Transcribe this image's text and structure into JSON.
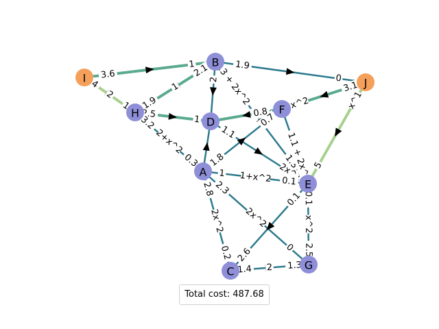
{
  "colors": {
    "node_blue": "#8e8fd8",
    "node_orange": "#f5a05a",
    "edge_teal": "#2c7a8c",
    "edge_green": "#5aaa90",
    "edge_light": "#a8d08f"
  },
  "nodes": [
    {
      "id": "B",
      "color": "node_blue"
    },
    {
      "id": "I",
      "color": "node_orange"
    },
    {
      "id": "J",
      "color": "node_orange"
    },
    {
      "id": "H",
      "color": "node_blue"
    },
    {
      "id": "F",
      "color": "node_blue"
    },
    {
      "id": "D",
      "color": "node_blue"
    },
    {
      "id": "A",
      "color": "node_blue"
    },
    {
      "id": "E",
      "color": "node_blue"
    },
    {
      "id": "C",
      "color": "node_blue"
    },
    {
      "id": "G",
      "color": "node_blue"
    }
  ],
  "edges": [
    {
      "from": "I",
      "to": "B",
      "labels": [
        "3.6",
        "1"
      ],
      "color": "edge_green"
    },
    {
      "from": "B",
      "to": "J",
      "labels": [
        "1.9",
        "0"
      ],
      "color": "edge_teal"
    },
    {
      "from": "B",
      "to": "H",
      "labels": [
        "2.1",
        "1",
        "1.9"
      ],
      "color": "edge_green"
    },
    {
      "from": "B",
      "to": "D",
      "labels": [
        "2"
      ],
      "color": "edge_teal"
    },
    {
      "from": "B",
      "to": "E",
      "labels": [
        "1.3 + 2x^2",
        "1.3"
      ],
      "color": "edge_teal"
    },
    {
      "from": "I",
      "to": "H",
      "labels": [
        ".4",
        "2",
        "1"
      ],
      "color": "edge_light"
    },
    {
      "from": "H",
      "to": "D",
      "labels": [
        "2.5",
        "1"
      ],
      "color": "edge_green"
    },
    {
      "from": "F",
      "to": "D",
      "labels": [
        "0.8"
      ],
      "color": "edge_green"
    },
    {
      "from": "J",
      "to": "F",
      "labels": [
        "3.1",
        "2x^2"
      ],
      "color": "edge_green"
    },
    {
      "from": "H",
      "to": "A",
      "labels": [
        "3.2",
        "2+x^2",
        "0.3"
      ],
      "color": "edge_teal"
    },
    {
      "from": "D",
      "to": "E",
      "labels": [
        "1.1",
        "2x^1"
      ],
      "color": "edge_teal"
    },
    {
      "from": "E",
      "to": "F",
      "labels": [
        "1.1 + 2x^1.3"
      ],
      "color": "edge_teal"
    },
    {
      "from": "A",
      "to": "F",
      "labels": [
        "1.8",
        "0.7"
      ],
      "color": "edge_teal"
    },
    {
      "from": "A",
      "to": "D",
      "labels": [],
      "color": "edge_teal"
    },
    {
      "from": "J",
      "to": "E",
      "labels": [
        "x^1",
        "5"
      ],
      "color": "edge_light"
    },
    {
      "from": "A",
      "to": "E",
      "labels": [
        "1",
        "1+x^2",
        "0.1"
      ],
      "color": "edge_teal"
    },
    {
      "from": "A",
      "to": "G",
      "labels": [
        "2.3",
        "2x^2",
        "0"
      ],
      "color": "edge_teal"
    },
    {
      "from": "A",
      "to": "C",
      "labels": [
        "2.8",
        "2x^2",
        "0.2"
      ],
      "color": "edge_teal"
    },
    {
      "from": "E",
      "to": "C",
      "labels": [
        "0.1",
        "2.6"
      ],
      "color": "edge_teal"
    },
    {
      "from": "E",
      "to": "G",
      "labels": [
        "0.1",
        "x^2",
        "2.5"
      ],
      "color": "edge_teal"
    },
    {
      "from": "C",
      "to": "G",
      "labels": [
        "1.4",
        "2",
        "1.3"
      ],
      "color": "edge_teal"
    }
  ],
  "total_cost_text": "Total cost: 487.68"
}
